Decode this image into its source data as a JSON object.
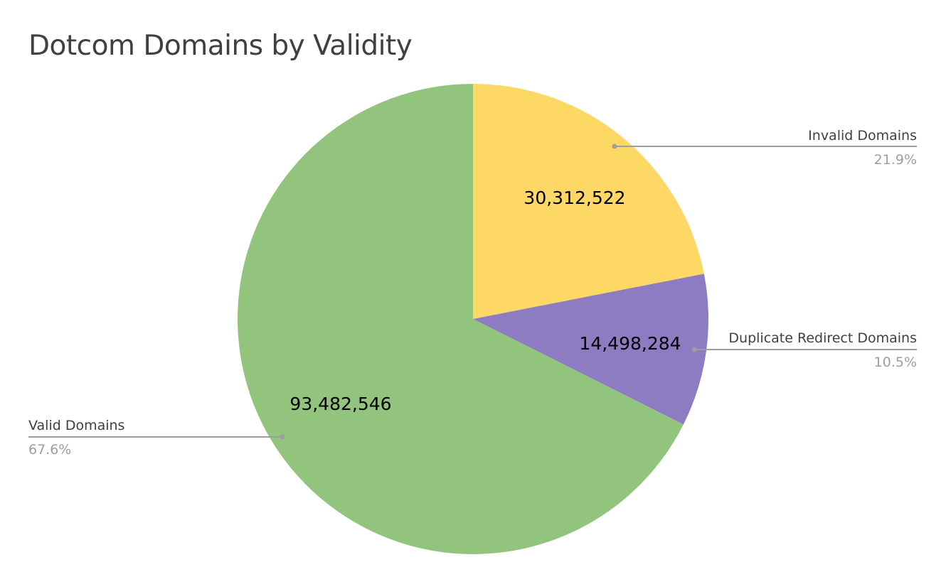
{
  "chart_data": {
    "type": "pie",
    "title": "Dotcom Domains by Validity",
    "slices": [
      {
        "name": "Invalid Domains",
        "value": 30312522,
        "value_label": "30,312,522",
        "percent_label": "21.9%",
        "color": "#fdd865"
      },
      {
        "name": "Duplicate Redirect Domains",
        "value": 14498284,
        "value_label": "14,498,284",
        "percent_label": "10.5%",
        "color": "#8e7cc3"
      },
      {
        "name": "Valid Domains",
        "value": 93482546,
        "value_label": "93,482,546",
        "percent_label": "67.6%",
        "color": "#93c47d"
      }
    ],
    "start_angle": "12 o'clock",
    "direction": "clockwise",
    "legend": "none",
    "leader_line_color": "#9e9e9e"
  }
}
